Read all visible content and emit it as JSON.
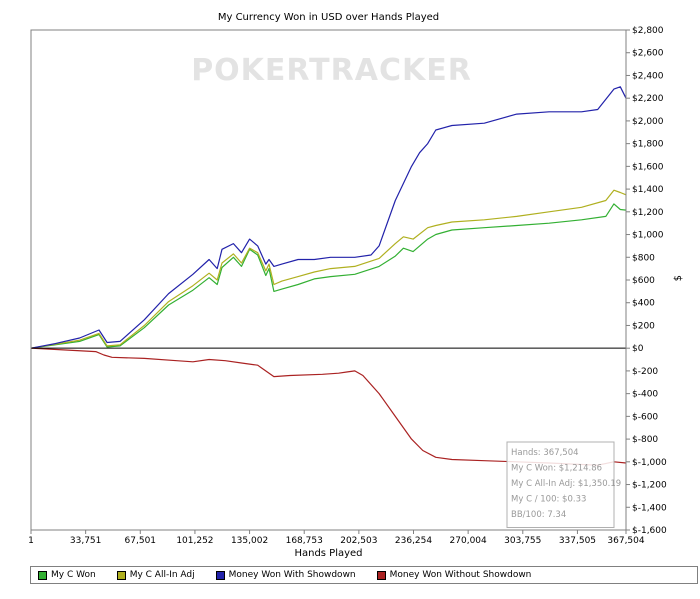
{
  "chart_data": {
    "type": "line",
    "title": "My Currency Won in USD over Hands Played",
    "xlabel": "Hands Played",
    "ylabel": "$",
    "xlim": [
      1,
      367504
    ],
    "ylim": [
      -1600,
      2800
    ],
    "x_ticks": [
      1,
      33751,
      67501,
      101252,
      135002,
      168753,
      202503,
      236254,
      270004,
      303755,
      337505,
      367504
    ],
    "x_tick_labels": [
      "1",
      "33,751",
      "67,501",
      "101,252",
      "135,002",
      "168,753",
      "202,503",
      "236,254",
      "270,004",
      "303,755",
      "337,505",
      "367,504"
    ],
    "y_ticks": [
      -1600,
      -1400,
      -1200,
      -1000,
      -800,
      -600,
      -400,
      -200,
      0,
      200,
      400,
      600,
      800,
      1000,
      1200,
      1400,
      1600,
      1800,
      2000,
      2200,
      2400,
      2600,
      2800
    ],
    "y_tick_labels": [
      "$-1,600",
      "$-1,400",
      "$-1,200",
      "$-1,000",
      "$-800",
      "$-600",
      "$-400",
      "$-200",
      "$0",
      "$200",
      "$400",
      "$600",
      "$800",
      "$1,000",
      "$1,200",
      "$1,400",
      "$1,600",
      "$1,800",
      "$2,000",
      "$2,200",
      "$2,400",
      "$2,600",
      "$2,800"
    ],
    "y_axis_side": "right",
    "grid": false,
    "legend_position": "bottom",
    "watermark": "POKERTRACKER",
    "series": [
      {
        "name": "My C Won",
        "color": "#33b033",
        "x": [
          1,
          15000,
          30000,
          42000,
          47000,
          55000,
          70000,
          85000,
          100000,
          110000,
          115000,
          118000,
          125000,
          130000,
          135000,
          140000,
          145000,
          147000,
          150000,
          155000,
          165000,
          175000,
          185000,
          200000,
          215000,
          225000,
          230000,
          236000,
          245000,
          250000,
          260000,
          280000,
          300000,
          320000,
          340000,
          355000,
          360000,
          364000,
          367504
        ],
        "y": [
          0,
          30,
          60,
          120,
          10,
          20,
          180,
          380,
          510,
          620,
          560,
          710,
          800,
          720,
          870,
          820,
          640,
          700,
          500,
          520,
          560,
          610,
          630,
          650,
          720,
          810,
          880,
          850,
          960,
          1000,
          1040,
          1060,
          1080,
          1100,
          1130,
          1160,
          1270,
          1220,
          1214.86
        ]
      },
      {
        "name": "My C All-In Adj",
        "color": "#b0b020",
        "x": [
          1,
          15000,
          30000,
          42000,
          47000,
          55000,
          70000,
          85000,
          100000,
          110000,
          115000,
          118000,
          125000,
          130000,
          135000,
          140000,
          145000,
          147000,
          150000,
          155000,
          165000,
          175000,
          185000,
          200000,
          215000,
          225000,
          230000,
          236000,
          245000,
          250000,
          260000,
          280000,
          300000,
          320000,
          340000,
          355000,
          360000,
          364000,
          367504
        ],
        "y": [
          0,
          35,
          70,
          130,
          20,
          30,
          200,
          410,
          550,
          660,
          600,
          750,
          830,
          750,
          880,
          840,
          680,
          740,
          560,
          590,
          630,
          670,
          700,
          720,
          790,
          920,
          980,
          960,
          1060,
          1080,
          1110,
          1130,
          1160,
          1200,
          1240,
          1300,
          1390,
          1370,
          1350.19
        ]
      },
      {
        "name": "Money Won With Showdown",
        "color": "#2222aa",
        "x": [
          1,
          15000,
          30000,
          42000,
          47000,
          55000,
          70000,
          85000,
          100000,
          110000,
          115000,
          118000,
          125000,
          130000,
          135000,
          140000,
          145000,
          147000,
          150000,
          155000,
          165000,
          175000,
          185000,
          200000,
          210000,
          215000,
          225000,
          235000,
          240000,
          245000,
          250000,
          260000,
          280000,
          300000,
          320000,
          340000,
          350000,
          360000,
          364000,
          367504
        ],
        "y": [
          0,
          40,
          90,
          160,
          50,
          60,
          250,
          480,
          650,
          780,
          700,
          870,
          920,
          840,
          960,
          900,
          740,
          780,
          720,
          740,
          780,
          780,
          800,
          800,
          820,
          900,
          1300,
          1600,
          1720,
          1800,
          1920,
          1960,
          1980,
          2060,
          2080,
          2080,
          2100,
          2280,
          2300,
          2200
        ]
      },
      {
        "name": "Money Won Without Showdown",
        "color": "#aa2222",
        "x": [
          1,
          20000,
          40000,
          45000,
          50000,
          70000,
          90000,
          100000,
          110000,
          120000,
          130000,
          135000,
          140000,
          142000,
          150000,
          160000,
          180000,
          190000,
          195000,
          200000,
          205000,
          215000,
          225000,
          235000,
          242000,
          250000,
          260000,
          280000,
          300000,
          320000,
          335000,
          350000,
          360000,
          367504
        ],
        "y": [
          0,
          -15,
          -30,
          -60,
          -80,
          -90,
          -110,
          -120,
          -100,
          -110,
          -130,
          -140,
          -150,
          -170,
          -250,
          -240,
          -230,
          -220,
          -210,
          -200,
          -240,
          -400,
          -600,
          -800,
          -900,
          -960,
          -980,
          -990,
          -1000,
          -1010,
          -1020,
          -1030,
          -1000,
          -1010
        ]
      }
    ],
    "info_box": [
      "Hands: 367,504",
      "My C Won: $1,214.86",
      "My C All-In Adj: $1,350.19",
      "My C / 100: $0.33",
      "BB/100: 7.34"
    ]
  }
}
